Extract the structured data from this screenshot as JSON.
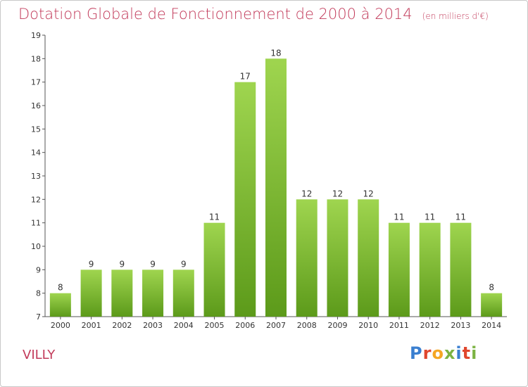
{
  "header": {
    "title": "Dotation Globale de Fonctionnement de 2000 à 2014",
    "unit": "(en milliers d'€)"
  },
  "footer": {
    "place": "VILLY",
    "logo": [
      "P",
      "r",
      "o",
      "x",
      "i",
      "t",
      "i"
    ],
    "logo_colors": [
      "#3a7fd0",
      "#e0462d",
      "#f5a623",
      "#7cb342",
      "#3a7fd0",
      "#e0462d",
      "#7cb342"
    ]
  },
  "colors": {
    "bar_top": "#9fd54f",
    "bar_bottom": "#5c9a1a",
    "title": "#c23a5a"
  },
  "chart_data": {
    "type": "bar",
    "title": "Dotation Globale de Fonctionnement de 2000 à 2014",
    "xlabel": "",
    "ylabel": "",
    "ylim": [
      7,
      19
    ],
    "yticks": [
      7,
      8,
      9,
      10,
      11,
      12,
      13,
      14,
      15,
      16,
      17,
      18,
      19
    ],
    "grid": false,
    "categories": [
      "2000",
      "2001",
      "2002",
      "2003",
      "2004",
      "2005",
      "2006",
      "2007",
      "2008",
      "2009",
      "2010",
      "2011",
      "2012",
      "2013",
      "2014"
    ],
    "values": [
      8,
      9,
      9,
      9,
      9,
      11,
      17,
      18,
      12,
      12,
      12,
      11,
      11,
      11,
      8
    ]
  }
}
